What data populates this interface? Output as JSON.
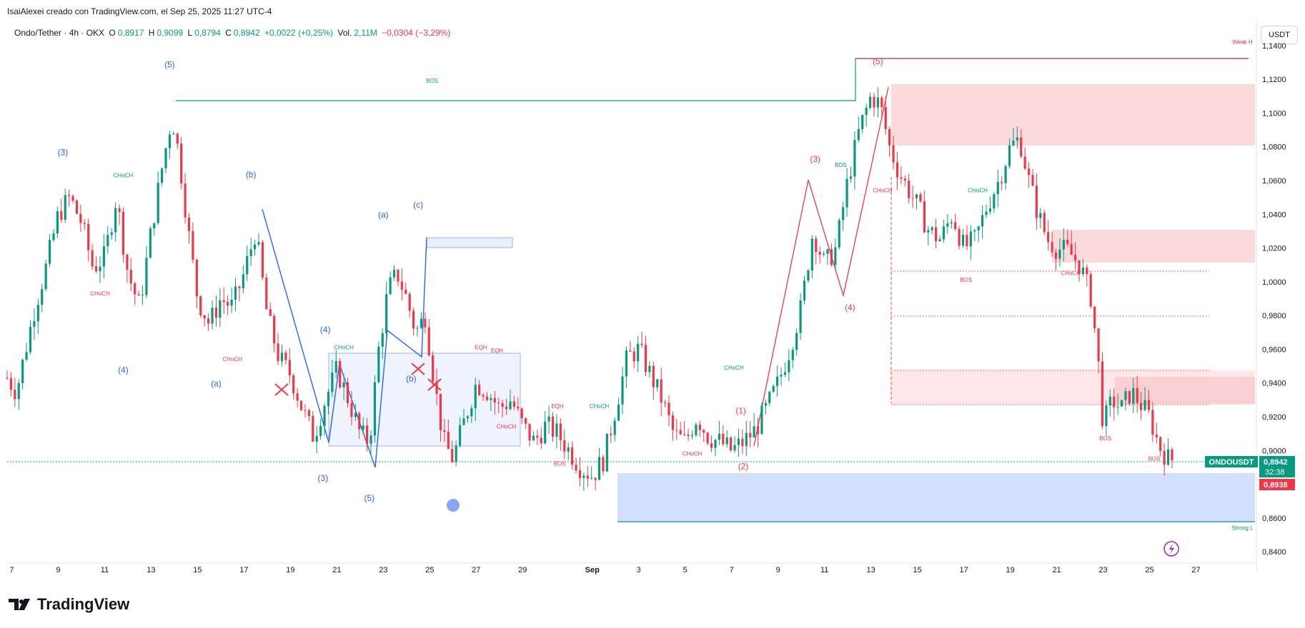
{
  "header": {
    "credit": "IsaiAlexei creado con TradingView.com, el Sep 25, 2025 11:27 UTC-4"
  },
  "legend": {
    "symbol": "Ondo/Tether · 4h · OKX",
    "o_label": "O",
    "o_value": "0,8917",
    "h_label": "H",
    "h_value": "0,9099",
    "l_label": "L",
    "l_value": "0,8794",
    "c_label": "C",
    "c_value": "0,8942",
    "change": "+0,0022 (+0,25%)",
    "vol_label": "Vol.",
    "vol_value": "2,11M",
    "vol_change": "−0,0304 (−3,29%)"
  },
  "price_axis": {
    "unit": "USDT",
    "symbol_tag": "ONDOUSDT",
    "last_price": "0,8942",
    "countdown": "32:38",
    "bid_price": "0,8938"
  },
  "footer": {
    "brand": "TradingView"
  },
  "colors": {
    "up": "#089981",
    "down": "#f23645",
    "blue_wave": "#2962ff",
    "red_wave": "#f23645",
    "bos_line": "#089981",
    "supply_zone": "#f8bbbf",
    "demand_zone": "#bbd0fb"
  },
  "chart_data": {
    "type": "candlestick",
    "title": "",
    "ylim": [
      0.835,
      1.145
    ],
    "y_ticks": [
      "1,1400",
      "1,1200",
      "1,1000",
      "1,0800",
      "1,0600",
      "1,0400",
      "1,0200",
      "1,0000",
      "0,9800",
      "0,9600",
      "0,9400",
      "0,9200",
      "0,9000",
      "0,8800",
      "0,8600",
      "0,8400"
    ],
    "y_tick_values": [
      1.14,
      1.12,
      1.1,
      1.08,
      1.06,
      1.04,
      1.02,
      1.0,
      0.98,
      0.96,
      0.94,
      0.92,
      0.9,
      0.88,
      0.86,
      0.84
    ],
    "x_ticks": [
      "7",
      "9",
      "11",
      "13",
      "15",
      "17",
      "19",
      "21",
      "23",
      "25",
      "27",
      "29",
      "Sep",
      "3",
      "5",
      "7",
      "9",
      "11",
      "13",
      "15",
      "17",
      "19",
      "21",
      "23",
      "25",
      "27"
    ],
    "x_tick_days": [
      7,
      9,
      11,
      13,
      15,
      17,
      19,
      21,
      23,
      25,
      27,
      29,
      32,
      34,
      36,
      38,
      40,
      42,
      44,
      46,
      48,
      50,
      52,
      54,
      56,
      58
    ],
    "x_start_day": 6.8,
    "close_path": [
      [
        6.8,
        0.943
      ],
      [
        7.2,
        0.935
      ],
      [
        7.6,
        0.96
      ],
      [
        8.0,
        0.985
      ],
      [
        8.5,
        1.01
      ],
      [
        9.0,
        1.04
      ],
      [
        9.5,
        1.05
      ],
      [
        10.0,
        1.035
      ],
      [
        10.5,
        1.008
      ],
      [
        11.0,
        1.015
      ],
      [
        11.5,
        1.05
      ],
      [
        12.0,
        1.005
      ],
      [
        12.5,
        0.985
      ],
      [
        13.0,
        1.03
      ],
      [
        13.5,
        1.07
      ],
      [
        13.9,
        1.098
      ],
      [
        14.2,
        1.075
      ],
      [
        14.6,
        1.03
      ],
      [
        15.0,
        0.99
      ],
      [
        15.5,
        0.975
      ],
      [
        16.0,
        0.99
      ],
      [
        16.5,
        0.985
      ],
      [
        17.0,
        1.005
      ],
      [
        17.5,
        1.03
      ],
      [
        18.0,
        0.98
      ],
      [
        18.5,
        0.955
      ],
      [
        19.0,
        0.945
      ],
      [
        19.5,
        0.925
      ],
      [
        20.0,
        0.908
      ],
      [
        20.5,
        0.93
      ],
      [
        21.0,
        0.948
      ],
      [
        21.5,
        0.93
      ],
      [
        22.0,
        0.91
      ],
      [
        22.4,
        0.905
      ],
      [
        22.8,
        0.96
      ],
      [
        23.2,
        0.995
      ],
      [
        23.6,
        1.005
      ],
      [
        24.0,
        0.99
      ],
      [
        24.4,
        0.97
      ],
      [
        24.8,
        0.98
      ],
      [
        25.2,
        0.94
      ],
      [
        25.6,
        0.905
      ],
      [
        26.0,
        0.895
      ],
      [
        26.5,
        0.918
      ],
      [
        27.0,
        0.94
      ],
      [
        27.5,
        0.935
      ],
      [
        28.0,
        0.925
      ],
      [
        28.5,
        0.93
      ],
      [
        29.0,
        0.915
      ],
      [
        29.5,
        0.905
      ],
      [
        30.0,
        0.915
      ],
      [
        30.5,
        0.91
      ],
      [
        31.0,
        0.9
      ],
      [
        31.5,
        0.89
      ],
      [
        32.0,
        0.885
      ],
      [
        32.5,
        0.895
      ],
      [
        33.0,
        0.925
      ],
      [
        33.5,
        0.955
      ],
      [
        34.0,
        0.96
      ],
      [
        34.5,
        0.945
      ],
      [
        35.0,
        0.93
      ],
      [
        35.5,
        0.91
      ],
      [
        36.0,
        0.905
      ],
      [
        36.5,
        0.92
      ],
      [
        37.0,
        0.908
      ],
      [
        37.5,
        0.905
      ],
      [
        38.0,
        0.9
      ],
      [
        38.5,
        0.905
      ],
      [
        39.0,
        0.912
      ],
      [
        39.5,
        0.925
      ],
      [
        40.0,
        0.94
      ],
      [
        40.5,
        0.96
      ],
      [
        41.0,
        0.985
      ],
      [
        41.5,
        1.03
      ],
      [
        42.0,
        1.01
      ],
      [
        42.5,
        1.02
      ],
      [
        43.0,
        1.06
      ],
      [
        43.5,
        1.09
      ],
      [
        44.0,
        1.11
      ],
      [
        44.4,
        1.105
      ],
      [
        44.8,
        1.08
      ],
      [
        45.2,
        1.065
      ],
      [
        45.6,
        1.055
      ],
      [
        46.0,
        1.045
      ],
      [
        46.5,
        1.03
      ],
      [
        47.0,
        1.025
      ],
      [
        47.5,
        1.04
      ],
      [
        48.0,
        1.02
      ],
      [
        48.5,
        1.025
      ],
      [
        49.0,
        1.045
      ],
      [
        49.5,
        1.06
      ],
      [
        50.0,
        1.08
      ],
      [
        50.4,
        1.085
      ],
      [
        50.8,
        1.06
      ],
      [
        51.2,
        1.04
      ],
      [
        51.6,
        1.025
      ],
      [
        52.0,
        1.02
      ],
      [
        52.5,
        1.018
      ],
      [
        53.0,
        1.01
      ],
      [
        53.5,
        0.99
      ],
      [
        53.8,
        0.95
      ],
      [
        54.0,
        0.915
      ],
      [
        54.4,
        0.93
      ],
      [
        54.8,
        0.925
      ],
      [
        55.2,
        0.935
      ],
      [
        55.6,
        0.928
      ],
      [
        56.0,
        0.92
      ],
      [
        56.4,
        0.903
      ],
      [
        56.8,
        0.895
      ],
      [
        57.1,
        0.8942
      ]
    ],
    "wave_labels_blue": [
      {
        "text": "(5)",
        "day": 13.8,
        "price": 1.127
      },
      {
        "text": "(3)",
        "day": 9.2,
        "price": 1.075
      },
      {
        "text": "(4)",
        "day": 11.8,
        "price": 0.946
      },
      {
        "text": "(b)",
        "day": 17.3,
        "price": 1.062
      },
      {
        "text": "(a)",
        "day": 15.8,
        "price": 0.938
      },
      {
        "text": "(4)",
        "day": 20.5,
        "price": 0.97
      },
      {
        "text": "(3)",
        "day": 20.4,
        "price": 0.882
      },
      {
        "text": "(5)",
        "day": 22.4,
        "price": 0.87
      },
      {
        "text": "(a)",
        "day": 23.0,
        "price": 1.038
      },
      {
        "text": "(c)",
        "day": 24.5,
        "price": 1.044
      },
      {
        "text": "(b)",
        "day": 24.2,
        "price": 0.941
      }
    ],
    "wave_labels_red": [
      {
        "text": "(5)",
        "day": 44.3,
        "price": 1.129
      },
      {
        "text": "(3)",
        "day": 41.6,
        "price": 1.071
      },
      {
        "text": "(4)",
        "day": 43.1,
        "price": 0.983
      },
      {
        "text": "(1)",
        "day": 38.4,
        "price": 0.922
      },
      {
        "text": "(2)",
        "day": 38.5,
        "price": 0.889
      }
    ],
    "structure_labels": [
      {
        "text": "BOS",
        "day": 25.1,
        "price": 1.118,
        "color": "up"
      },
      {
        "text": "CHoCH",
        "day": 11.8,
        "price": 1.062,
        "color": "up"
      },
      {
        "text": "CHoCH",
        "day": 10.8,
        "price": 0.992,
        "color": "down"
      },
      {
        "text": "CHoCH",
        "day": 16.5,
        "price": 0.953,
        "color": "down"
      },
      {
        "text": "CHoCH",
        "day": 21.3,
        "price": 0.96,
        "color": "up"
      },
      {
        "text": "EQH",
        "day": 27.2,
        "price": 0.96,
        "color": "down"
      },
      {
        "text": "EQH",
        "day": 27.9,
        "price": 0.958,
        "color": "down"
      },
      {
        "text": "CHoCH",
        "day": 28.3,
        "price": 0.913,
        "color": "down"
      },
      {
        "text": "EQH",
        "day": 30.5,
        "price": 0.925,
        "color": "down"
      },
      {
        "text": "CHoCH",
        "day": 32.3,
        "price": 0.925,
        "color": "up"
      },
      {
        "text": "BOS",
        "day": 30.6,
        "price": 0.891,
        "color": "down"
      },
      {
        "text": "CHoCH",
        "day": 38.1,
        "price": 0.948,
        "color": "up"
      },
      {
        "text": "CHoCH",
        "day": 36.3,
        "price": 0.897,
        "color": "down"
      },
      {
        "text": "BOS",
        "day": 42.7,
        "price": 1.068,
        "color": "up"
      },
      {
        "text": "CHoCH",
        "day": 44.5,
        "price": 1.053,
        "color": "down"
      },
      {
        "text": "CHoCH",
        "day": 48.6,
        "price": 1.053,
        "color": "up"
      },
      {
        "text": "BOS",
        "day": 48.1,
        "price": 1.0,
        "color": "down"
      },
      {
        "text": "CHoCH",
        "day": 52.6,
        "price": 1.004,
        "color": "down"
      },
      {
        "text": "BOS",
        "day": 54.1,
        "price": 0.906,
        "color": "down"
      },
      {
        "text": "BOS",
        "day": 56.2,
        "price": 0.894,
        "color": "down"
      },
      {
        "text": "Weak H",
        "day": 60.0,
        "price": 1.141,
        "color": "down"
      },
      {
        "text": "Strong L",
        "day": 60.0,
        "price": 0.853,
        "color": "up"
      }
    ]
  }
}
